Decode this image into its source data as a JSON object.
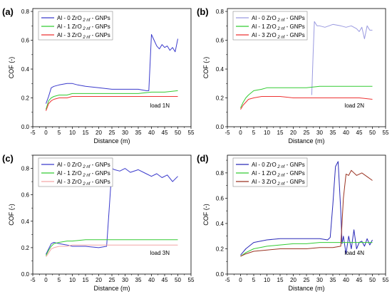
{
  "chart_data": [
    {
      "type": "line",
      "panel_label": "(a)",
      "annotation": "load 1N",
      "xlabel": "Distance (m)",
      "ylabel": "COF (-)",
      "xlim": [
        -5,
        55
      ],
      "ylim": [
        0.0,
        0.82
      ],
      "xticks": [
        "-5",
        "0",
        "5",
        "10",
        "15",
        "20",
        "25",
        "30",
        "35",
        "40",
        "45",
        "50",
        "55"
      ],
      "yticks": [
        "0.0",
        "0.2",
        "0.4",
        "0.6",
        "0.8"
      ],
      "legend_position": "top-left",
      "series": [
        {
          "name": "Al - 0 ZrO",
          "sub": "2 nf",
          "suffix": " - GNPs",
          "color": "#3a3acc",
          "x": [
            0,
            1,
            2,
            3,
            5,
            8,
            10,
            12,
            15,
            20,
            25,
            30,
            35,
            38,
            39,
            39.5,
            40,
            41,
            42,
            43,
            44,
            45,
            46,
            47,
            48,
            49,
            50
          ],
          "y": [
            0.16,
            0.21,
            0.27,
            0.28,
            0.29,
            0.3,
            0.3,
            0.29,
            0.28,
            0.27,
            0.26,
            0.26,
            0.26,
            0.25,
            0.25,
            0.45,
            0.64,
            0.6,
            0.56,
            0.54,
            0.57,
            0.55,
            0.56,
            0.53,
            0.55,
            0.52,
            0.61
          ]
        },
        {
          "name": "Al - 1 ZrO",
          "sub": "2 nf",
          "suffix": " - GNPs",
          "color": "#33cc33",
          "x": [
            0,
            1,
            2,
            3,
            5,
            8,
            10,
            15,
            20,
            25,
            30,
            35,
            40,
            45,
            50
          ],
          "y": [
            0.12,
            0.18,
            0.2,
            0.21,
            0.22,
            0.22,
            0.23,
            0.23,
            0.23,
            0.23,
            0.23,
            0.23,
            0.24,
            0.24,
            0.25
          ]
        },
        {
          "name": "Al - 3 ZrO",
          "sub": "2 nf",
          "suffix": " - GNPs",
          "color": "#ee3333",
          "x": [
            0,
            1,
            2,
            3,
            5,
            8,
            10,
            15,
            20,
            25,
            30,
            35,
            40,
            45,
            50
          ],
          "y": [
            0.11,
            0.16,
            0.18,
            0.19,
            0.2,
            0.2,
            0.21,
            0.21,
            0.21,
            0.21,
            0.21,
            0.21,
            0.21,
            0.21,
            0.21
          ]
        }
      ]
    },
    {
      "type": "line",
      "panel_label": "(b)",
      "annotation": "load 2N",
      "xlabel": "Distance (m)",
      "ylabel": "COF (-)",
      "xlim": [
        -5,
        55
      ],
      "ylim": [
        0.0,
        0.82
      ],
      "xticks": [
        "-5",
        "0",
        "5",
        "10",
        "15",
        "20",
        "25",
        "30",
        "35",
        "40",
        "45",
        "50",
        "55"
      ],
      "yticks": [
        "0.0",
        "0.2",
        "0.4",
        "0.6",
        "0.8"
      ],
      "legend_position": "top-left",
      "series": [
        {
          "name": "Al - 0 ZrO",
          "sub": "2 nf",
          "suffix": " - GNPs",
          "color": "#9a9ae0",
          "x": [
            27,
            27.5,
            28,
            29,
            30,
            32,
            35,
            38,
            40,
            42,
            44,
            45,
            46,
            47,
            48,
            49,
            50
          ],
          "y": [
            0.22,
            0.5,
            0.73,
            0.7,
            0.7,
            0.69,
            0.71,
            0.7,
            0.69,
            0.7,
            0.68,
            0.66,
            0.69,
            0.61,
            0.7,
            0.67,
            0.67
          ]
        },
        {
          "name": "Al - 1 ZrO",
          "sub": "2 nf",
          "suffix": " - GNPs",
          "color": "#33cc33",
          "x": [
            0,
            1,
            2,
            3,
            5,
            8,
            10,
            15,
            20,
            25,
            30,
            35,
            40,
            45,
            50
          ],
          "y": [
            0.13,
            0.17,
            0.2,
            0.22,
            0.25,
            0.26,
            0.27,
            0.27,
            0.27,
            0.27,
            0.28,
            0.28,
            0.28,
            0.28,
            0.28
          ]
        },
        {
          "name": "Al - 3 ZrO",
          "sub": "2 nf",
          "suffix": " - GNPs",
          "color": "#ee3333",
          "x": [
            0,
            1,
            2,
            3,
            5,
            8,
            10,
            15,
            20,
            25,
            30,
            35,
            40,
            45,
            50
          ],
          "y": [
            0.12,
            0.15,
            0.17,
            0.19,
            0.2,
            0.21,
            0.21,
            0.21,
            0.2,
            0.2,
            0.2,
            0.2,
            0.2,
            0.2,
            0.19
          ]
        }
      ]
    },
    {
      "type": "line",
      "panel_label": "(c)",
      "annotation": "load 3N",
      "xlabel": "Distance (m)",
      "ylabel": "COF (-)",
      "xlim": [
        -5,
        55
      ],
      "ylim": [
        0.0,
        0.9
      ],
      "xticks": [
        "-5",
        "0",
        "5",
        "10",
        "15",
        "20",
        "25",
        "30",
        "35",
        "40",
        "45",
        "50",
        "55"
      ],
      "yticks": [
        "0.0",
        "0.2",
        "0.4",
        "0.6",
        "0.8"
      ],
      "legend_position": "top-left",
      "series": [
        {
          "name": "Al - 0 ZrO",
          "sub": "2 nf",
          "suffix": " - GNPs",
          "color": "#3a3acc",
          "x": [
            0,
            1,
            2,
            3,
            5,
            8,
            10,
            15,
            20,
            23,
            24,
            25,
            26,
            28,
            30,
            32,
            35,
            38,
            40,
            42,
            44,
            46,
            48,
            50
          ],
          "y": [
            0.15,
            0.19,
            0.23,
            0.24,
            0.23,
            0.22,
            0.21,
            0.21,
            0.2,
            0.21,
            0.5,
            0.8,
            0.79,
            0.78,
            0.8,
            0.77,
            0.79,
            0.76,
            0.74,
            0.76,
            0.73,
            0.75,
            0.7,
            0.74
          ]
        },
        {
          "name": "Al - 1 ZrO",
          "sub": "2 nf",
          "suffix": " - GNPs",
          "color": "#33cc33",
          "x": [
            0,
            1,
            2,
            3,
            5,
            8,
            10,
            15,
            20,
            25,
            30,
            35,
            40,
            45,
            50
          ],
          "y": [
            0.14,
            0.18,
            0.21,
            0.23,
            0.24,
            0.25,
            0.25,
            0.26,
            0.26,
            0.26,
            0.26,
            0.26,
            0.26,
            0.26,
            0.26
          ]
        },
        {
          "name": "Al - 3 ZrO",
          "sub": "2 nf",
          "suffix": " - GNPs",
          "color": "#f4a6a6",
          "x": [
            0,
            1,
            2,
            3,
            5,
            8,
            10,
            15,
            20,
            25,
            30,
            35,
            40,
            45,
            50
          ],
          "y": [
            0.13,
            0.16,
            0.19,
            0.2,
            0.21,
            0.21,
            0.22,
            0.22,
            0.22,
            0.22,
            0.22,
            0.22,
            0.22,
            0.22,
            0.22
          ]
        }
      ]
    },
    {
      "type": "line",
      "panel_label": "(d)",
      "annotation": "load 4N",
      "xlabel": "Distance (m)",
      "ylabel": "COF (-)",
      "xlim": [
        -5,
        55
      ],
      "ylim": [
        0.0,
        0.94
      ],
      "xticks": [
        "-5",
        "0",
        "5",
        "10",
        "15",
        "20",
        "25",
        "30",
        "35",
        "40",
        "45",
        "50",
        "55"
      ],
      "yticks": [
        "0.0",
        "0.2",
        "0.4",
        "0.6",
        "0.8"
      ],
      "legend_position": "top-left",
      "series": [
        {
          "name": "Al - 0 ZrO",
          "sub": "2 nf",
          "suffix": " - GNPs",
          "color": "#2a2ab8",
          "x": [
            0,
            2,
            5,
            10,
            15,
            20,
            25,
            30,
            33,
            34,
            35,
            36,
            37,
            38,
            38.5,
            39,
            40,
            41,
            42,
            43,
            44,
            45,
            46,
            47,
            48,
            49,
            50
          ],
          "y": [
            0.15,
            0.2,
            0.25,
            0.27,
            0.28,
            0.28,
            0.28,
            0.28,
            0.27,
            0.29,
            0.55,
            0.85,
            0.89,
            0.5,
            0.24,
            0.3,
            0.16,
            0.3,
            0.2,
            0.35,
            0.2,
            0.25,
            0.26,
            0.22,
            0.28,
            0.23,
            0.27
          ]
        },
        {
          "name": "Al - 1 ZrO",
          "sub": "2 nf",
          "suffix": " - GNPs",
          "color": "#33cc33",
          "x": [
            0,
            2,
            5,
            10,
            15,
            20,
            25,
            30,
            35,
            40,
            45,
            50
          ],
          "y": [
            0.14,
            0.17,
            0.2,
            0.22,
            0.23,
            0.24,
            0.24,
            0.25,
            0.25,
            0.25,
            0.25,
            0.25
          ]
        },
        {
          "name": "Al - 3 ZrO",
          "sub": "2 nf",
          "suffix": " - GNPs",
          "color": "#9a3322",
          "x": [
            0,
            2,
            5,
            10,
            15,
            20,
            25,
            30,
            35,
            38,
            39,
            40,
            41,
            42,
            44,
            46,
            48,
            50
          ],
          "y": [
            0.14,
            0.16,
            0.18,
            0.19,
            0.2,
            0.2,
            0.2,
            0.21,
            0.21,
            0.22,
            0.6,
            0.79,
            0.78,
            0.82,
            0.78,
            0.8,
            0.77,
            0.74
          ]
        }
      ]
    }
  ]
}
